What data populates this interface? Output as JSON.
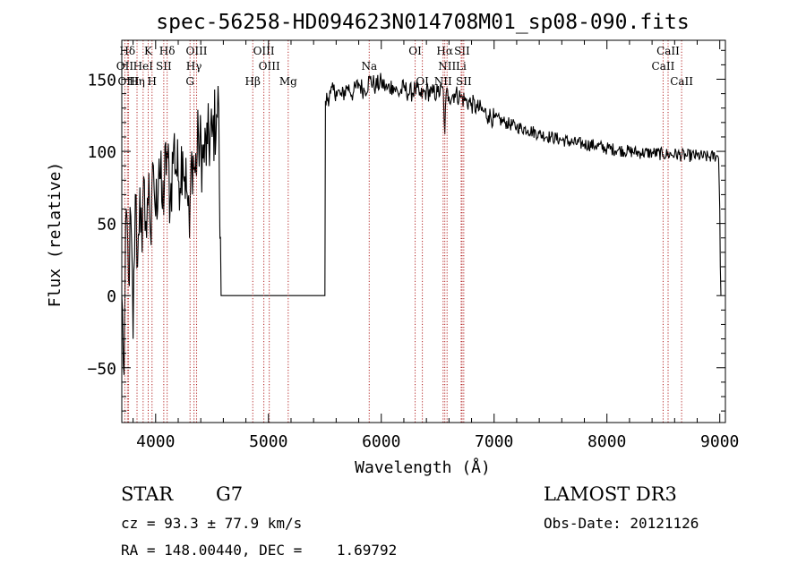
{
  "chart_data": {
    "type": "line",
    "title": "spec-56258-HD094623N014708M01_sp08-090.fits",
    "xlabel": "Wavelength (Å)",
    "ylabel": "Flux (relative)",
    "xlim": [
      3700,
      9050
    ],
    "ylim": [
      -88,
      177
    ],
    "xticks": [
      4000,
      5000,
      6000,
      7000,
      8000,
      9000
    ],
    "yticks": [
      -50,
      0,
      50,
      100,
      150
    ],
    "grid": false,
    "series": [
      {
        "color": "#000000",
        "anchors": [
          [
            3700,
            0
          ],
          [
            3720,
            -55
          ],
          [
            3740,
            60
          ],
          [
            3760,
            10
          ],
          [
            3780,
            55
          ],
          [
            3800,
            -30
          ],
          [
            3820,
            70
          ],
          [
            3840,
            20
          ],
          [
            3860,
            75
          ],
          [
            3880,
            30
          ],
          [
            3900,
            80
          ],
          [
            3920,
            40
          ],
          [
            3940,
            85
          ],
          [
            3960,
            35
          ],
          [
            3980,
            90
          ],
          [
            4000,
            55
          ],
          [
            4030,
            95
          ],
          [
            4060,
            60
          ],
          [
            4100,
            100
          ],
          [
            4130,
            65
          ],
          [
            4160,
            105
          ],
          [
            4200,
            80
          ],
          [
            4240,
            100
          ],
          [
            4280,
            70
          ],
          [
            4300,
            40
          ],
          [
            4320,
            100
          ],
          [
            4350,
            85
          ],
          [
            4380,
            108
          ],
          [
            4420,
            95
          ],
          [
            4460,
            105
          ],
          [
            4500,
            110
          ],
          [
            4540,
            125
          ],
          [
            4560,
            130
          ],
          [
            4570,
            40
          ],
          [
            4580,
            0
          ],
          [
            5500,
            0
          ],
          [
            5505,
            135
          ],
          [
            5550,
            140
          ],
          [
            5600,
            142
          ],
          [
            5650,
            138
          ],
          [
            5700,
            145
          ],
          [
            5750,
            140
          ],
          [
            5800,
            147
          ],
          [
            5850,
            142
          ],
          [
            5900,
            150
          ],
          [
            5950,
            145
          ],
          [
            6000,
            148
          ],
          [
            6050,
            143
          ],
          [
            6100,
            146
          ],
          [
            6150,
            140
          ],
          [
            6200,
            144
          ],
          [
            6250,
            140
          ],
          [
            6300,
            143
          ],
          [
            6350,
            138
          ],
          [
            6400,
            142
          ],
          [
            6450,
            140
          ],
          [
            6500,
            141
          ],
          [
            6550,
            142
          ],
          [
            6563,
            112
          ],
          [
            6575,
            140
          ],
          [
            6600,
            138
          ],
          [
            6650,
            140
          ],
          [
            6700,
            138
          ],
          [
            6750,
            135
          ],
          [
            6800,
            133
          ],
          [
            6850,
            130
          ],
          [
            6900,
            128
          ],
          [
            6950,
            125
          ],
          [
            7000,
            123
          ],
          [
            7100,
            120
          ],
          [
            7200,
            117
          ],
          [
            7300,
            115
          ],
          [
            7400,
            112
          ],
          [
            7500,
            110
          ],
          [
            7600,
            108
          ],
          [
            7700,
            106
          ],
          [
            7800,
            105
          ],
          [
            7900,
            104
          ],
          [
            8000,
            102
          ],
          [
            8100,
            101
          ],
          [
            8200,
            100
          ],
          [
            8300,
            99
          ],
          [
            8400,
            99
          ],
          [
            8500,
            98
          ],
          [
            8600,
            98
          ],
          [
            8700,
            97
          ],
          [
            8800,
            97
          ],
          [
            8900,
            96
          ],
          [
            8970,
            97
          ],
          [
            8990,
            95
          ],
          [
            9000,
            60
          ],
          [
            9005,
            20
          ],
          [
            9010,
            0
          ]
        ]
      }
    ],
    "spectral_lines": [
      {
        "name": "Hδ",
        "wavelength": 3750,
        "row": 0
      },
      {
        "name": "K",
        "wavelength": 3934,
        "row": 0
      },
      {
        "name": "Hδ",
        "wavelength": 4102,
        "row": 0
      },
      {
        "name": "OIII",
        "wavelength": 4363,
        "row": 0
      },
      {
        "name": "OIII",
        "wavelength": 4959,
        "row": 0
      },
      {
        "name": "OI",
        "wavelength": 6300,
        "row": 0
      },
      {
        "name": "Hα",
        "wavelength": 6563,
        "row": 0
      },
      {
        "name": "SII",
        "wavelength": 6716,
        "row": 0
      },
      {
        "name": "CaII",
        "wavelength": 8542,
        "row": 0
      },
      {
        "name": "OII",
        "wavelength": 3727,
        "row": 1
      },
      {
        "name": "HeI",
        "wavelength": 3889,
        "row": 1
      },
      {
        "name": "SII",
        "wavelength": 4072,
        "row": 1
      },
      {
        "name": "Hγ",
        "wavelength": 4340,
        "row": 1
      },
      {
        "name": "OIII",
        "wavelength": 5007,
        "row": 1
      },
      {
        "name": "Na",
        "wavelength": 5893,
        "row": 1
      },
      {
        "name": "NII",
        "wavelength": 6583,
        "row": 1
      },
      {
        "name": "Li",
        "wavelength": 6708,
        "row": 1
      },
      {
        "name": "CaII",
        "wavelength": 8498,
        "row": 1
      },
      {
        "name": "OIII",
        "wavelength": 3760,
        "row": 2
      },
      {
        "name": "Hη",
        "wavelength": 3835,
        "row": 2
      },
      {
        "name": "H",
        "wavelength": 3968,
        "row": 2
      },
      {
        "name": "G",
        "wavelength": 4305,
        "row": 2
      },
      {
        "name": "Hβ",
        "wavelength": 4861,
        "row": 2
      },
      {
        "name": "Mg",
        "wavelength": 5175,
        "row": 2
      },
      {
        "name": "OI",
        "wavelength": 6364,
        "row": 2
      },
      {
        "name": "NII",
        "wavelength": 6548,
        "row": 2
      },
      {
        "name": "SII",
        "wavelength": 6731,
        "row": 2
      },
      {
        "name": "CaII",
        "wavelength": 8662,
        "row": 2
      }
    ],
    "line_color": "#b22222"
  },
  "info": {
    "class": "STAR",
    "subclass": "G7",
    "survey": "LAMOST DR3",
    "cz": "cz = 93.3 ± 77.9 km/s",
    "obs_date": "Obs-Date: 20121126",
    "coords": "RA = 148.00440, DEC =    1.69792"
  }
}
